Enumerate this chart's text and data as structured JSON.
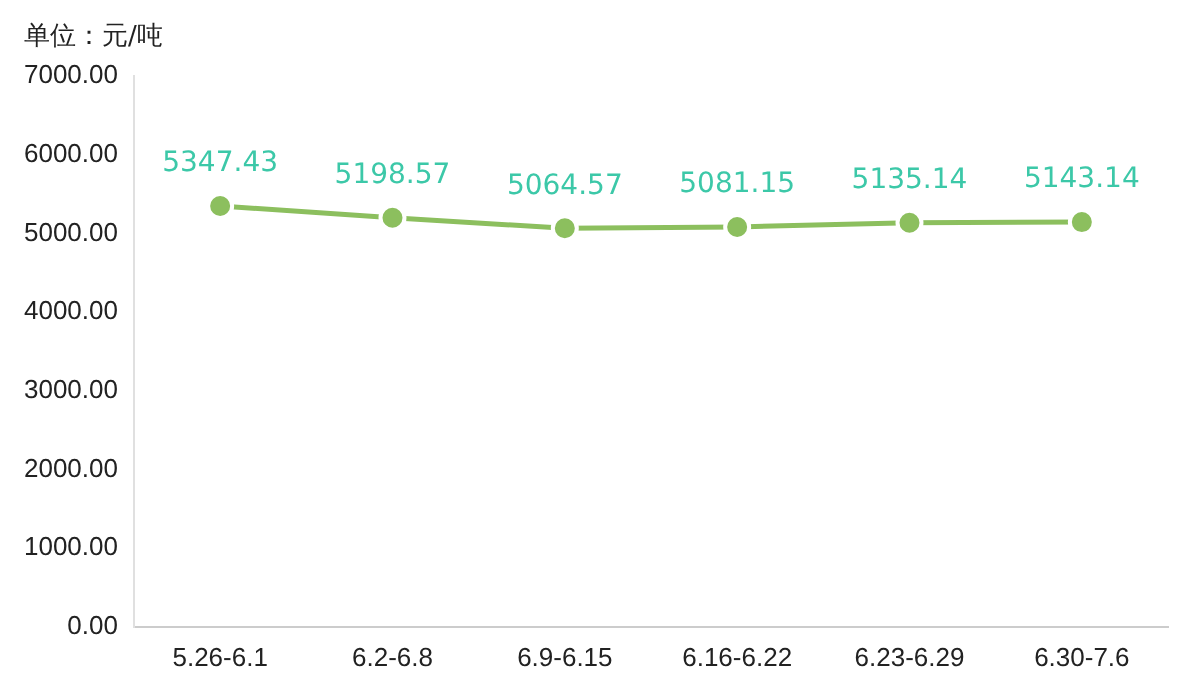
{
  "chart_data": {
    "type": "line",
    "ylabel": "单位：元/吨",
    "categories": [
      "5.26-6.1",
      "6.2-6.8",
      "6.9-6.15",
      "6.16-6.22",
      "6.23-6.29",
      "6.30-7.6"
    ],
    "series": [
      {
        "color": "#8cbf5e",
        "values": [
          5347.43,
          5198.57,
          5064.57,
          5081.15,
          5135.14,
          5143.14
        ]
      }
    ],
    "ylim": [
      0,
      7000
    ],
    "yticks": [
      {
        "value": 0,
        "label": "0.00"
      },
      {
        "value": 1000,
        "label": "1000.00"
      },
      {
        "value": 2000,
        "label": "2000.00"
      },
      {
        "value": 3000,
        "label": "3000.00"
      },
      {
        "value": 4000,
        "label": "4000.00"
      },
      {
        "value": 5000,
        "label": "5000.00"
      },
      {
        "value": 6000,
        "label": "6000.00"
      },
      {
        "value": 7000,
        "label": "7000.00"
      }
    ],
    "grid": false,
    "legend": false,
    "marker": "circle",
    "line_style": "solid",
    "data_labels": true
  }
}
